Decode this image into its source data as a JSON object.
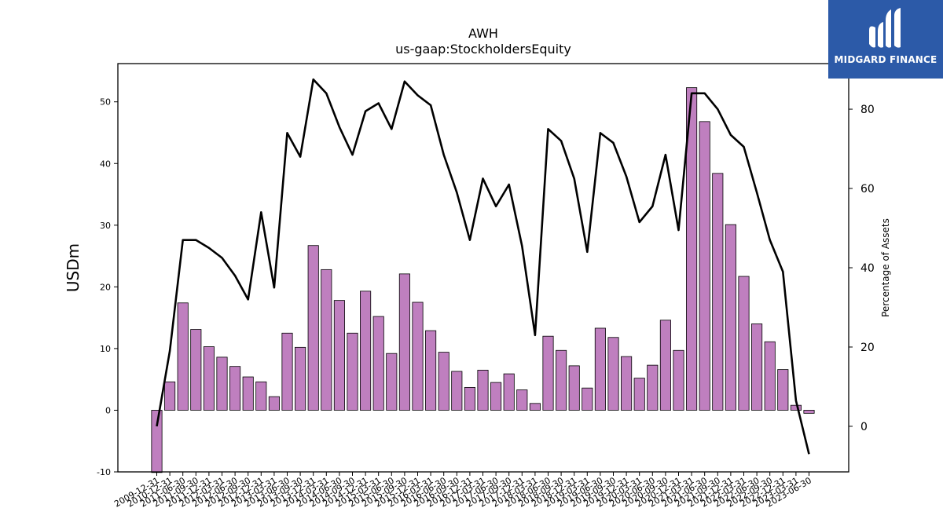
{
  "chart_data": {
    "type": "bar",
    "title": "AWH",
    "subtitle": "us-gaap:StockholdersEquity",
    "ylabel": "USDm",
    "y2label": "Percentage of Assets",
    "ylim": [
      -10,
      56.2
    ],
    "y2lim": [
      -11.5,
      91.5
    ],
    "yticks": [
      -10,
      0,
      10,
      20,
      30,
      40,
      50
    ],
    "y2ticks": [
      0,
      20,
      40,
      60,
      80
    ],
    "categories": [
      "2009-12-31",
      "2010-12-31",
      "2011-06-30",
      "2011-09-30",
      "2011-12-31",
      "2012-03-31",
      "2012-06-30",
      "2012-09-30",
      "2012-12-31",
      "2013-03-31",
      "2013-06-30",
      "2013-09-30",
      "2013-12-31",
      "2014-03-31",
      "2014-06-30",
      "2014-09-30",
      "2014-12-31",
      "2015-03-31",
      "2015-06-30",
      "2015-09-30",
      "2015-12-31",
      "2016-03-31",
      "2016-06-30",
      "2016-09-30",
      "2016-12-31",
      "2017-03-31",
      "2017-06-30",
      "2017-09-30",
      "2017-12-31",
      "2018-03-31",
      "2018-06-30",
      "2018-09-30",
      "2018-12-31",
      "2019-03-31",
      "2019-06-30",
      "2019-09-30",
      "2019-12-31",
      "2020-03-31",
      "2020-06-30",
      "2020-09-30",
      "2020-12-31",
      "2021-03-31",
      "2021-06-30",
      "2021-09-30",
      "2021-12-31",
      "2022-03-31",
      "2022-06-30",
      "2022-09-30",
      "2022-12-31",
      "2023-03-31",
      "2023-06-30"
    ],
    "series": [
      {
        "name": "StockholdersEquity",
        "type": "bar",
        "axis": "left",
        "color": "#bf7fbf",
        "values": [
          -10.1,
          4.6,
          17.4,
          13.1,
          10.3,
          8.6,
          7.1,
          5.4,
          4.6,
          2.2,
          12.5,
          10.2,
          26.7,
          22.8,
          17.8,
          12.5,
          19.3,
          15.2,
          9.2,
          22.1,
          17.5,
          12.9,
          9.4,
          6.3,
          3.7,
          6.5,
          4.5,
          5.9,
          3.3,
          1.1,
          12.0,
          9.7,
          7.2,
          3.6,
          13.3,
          11.8,
          8.7,
          5.2,
          7.3,
          14.6,
          9.7,
          52.3,
          46.8,
          38.4,
          30.1,
          21.7,
          14.0,
          11.1,
          6.6,
          0.8,
          -0.5
        ]
      },
      {
        "name": "Percentage of Assets",
        "type": "line",
        "axis": "right",
        "color": "#000000",
        "values": [
          0,
          19,
          47,
          47,
          45,
          42.5,
          38,
          32,
          54,
          35,
          74,
          68,
          87.5,
          84,
          75.5,
          68.5,
          79.5,
          81.5,
          75,
          87,
          83.5,
          81,
          68.5,
          59,
          47,
          62.5,
          55.5,
          61,
          45.5,
          23,
          75,
          72,
          62.5,
          44,
          74,
          71.5,
          63,
          51.5,
          55.5,
          68.5,
          49.5,
          84,
          84,
          80,
          73.5,
          70.5,
          59,
          47,
          39,
          6.5,
          -7
        ]
      }
    ],
    "grid": false,
    "legend": "none"
  },
  "logo": {
    "text": "MIDGARD FINANCE",
    "bg_color": "#2c5aa8",
    "icon": "midgard-logo-icon"
  }
}
